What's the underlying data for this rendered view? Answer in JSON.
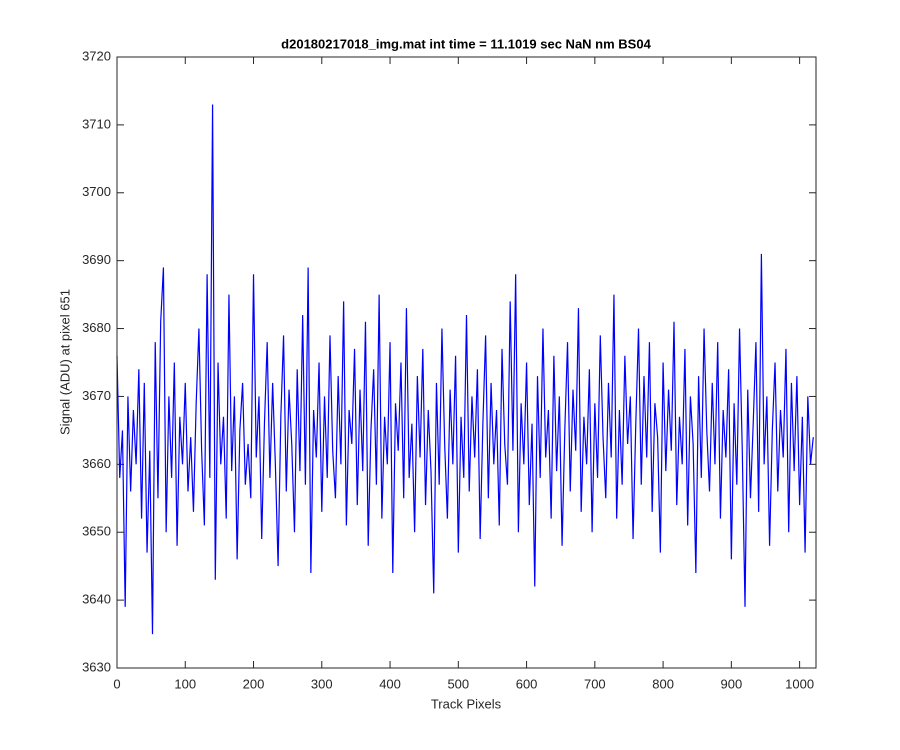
{
  "chart_data": {
    "type": "line",
    "title": "d20180217018_img.mat int time = 11.1019 sec  NaN nm BS04",
    "xlabel": "Track Pixels",
    "ylabel": "Signal (ADU) at pixel 651",
    "color": "#0000ff",
    "grid": false,
    "xlim": [
      0,
      1024
    ],
    "xticks": [
      0,
      100,
      200,
      300,
      400,
      500,
      600,
      700,
      800,
      900,
      1000
    ],
    "ylim": [
      3630,
      3720
    ],
    "yticks": [
      3630,
      3640,
      3650,
      3660,
      3670,
      3680,
      3690,
      3700,
      3710,
      3720
    ],
    "x": [
      0,
      4,
      8,
      12,
      16,
      20,
      24,
      28,
      32,
      36,
      40,
      44,
      48,
      52,
      56,
      60,
      64,
      68,
      72,
      76,
      80,
      84,
      88,
      92,
      96,
      100,
      104,
      108,
      112,
      116,
      120,
      124,
      128,
      132,
      136,
      140,
      144,
      148,
      152,
      156,
      160,
      164,
      168,
      172,
      176,
      180,
      184,
      188,
      192,
      196,
      200,
      204,
      208,
      212,
      216,
      220,
      224,
      228,
      232,
      236,
      240,
      244,
      248,
      252,
      256,
      260,
      264,
      268,
      272,
      276,
      280,
      284,
      288,
      292,
      296,
      300,
      304,
      308,
      312,
      316,
      320,
      324,
      328,
      332,
      336,
      340,
      344,
      348,
      352,
      356,
      360,
      364,
      368,
      372,
      376,
      380,
      384,
      388,
      392,
      396,
      400,
      404,
      408,
      412,
      416,
      420,
      424,
      428,
      432,
      436,
      440,
      444,
      448,
      452,
      456,
      460,
      464,
      468,
      472,
      476,
      480,
      484,
      488,
      492,
      496,
      500,
      504,
      508,
      512,
      516,
      520,
      524,
      528,
      532,
      536,
      540,
      544,
      548,
      552,
      556,
      560,
      564,
      568,
      572,
      576,
      580,
      584,
      588,
      592,
      596,
      600,
      604,
      608,
      612,
      616,
      620,
      624,
      628,
      632,
      636,
      640,
      644,
      648,
      652,
      656,
      660,
      664,
      668,
      672,
      676,
      680,
      684,
      688,
      692,
      696,
      700,
      704,
      708,
      712,
      716,
      720,
      724,
      728,
      732,
      736,
      740,
      744,
      748,
      752,
      756,
      760,
      764,
      768,
      772,
      776,
      780,
      784,
      788,
      792,
      796,
      800,
      804,
      808,
      812,
      816,
      820,
      824,
      828,
      832,
      836,
      840,
      844,
      848,
      852,
      856,
      860,
      864,
      868,
      872,
      876,
      880,
      884,
      888,
      892,
      896,
      900,
      904,
      908,
      912,
      916,
      920,
      924,
      928,
      932,
      936,
      940,
      944,
      948,
      952,
      956,
      960,
      964,
      968,
      972,
      976,
      980,
      984,
      988,
      992,
      996,
      1000,
      1004,
      1008,
      1012,
      1016,
      1020
    ],
    "values": [
      3676,
      3658,
      3665,
      3639,
      3670,
      3656,
      3668,
      3660,
      3674,
      3652,
      3672,
      3647,
      3662,
      3635,
      3678,
      3655,
      3681,
      3689,
      3650,
      3670,
      3658,
      3675,
      3648,
      3667,
      3660,
      3672,
      3656,
      3664,
      3653,
      3669,
      3680,
      3662,
      3651,
      3688,
      3658,
      3713,
      3643,
      3675,
      3660,
      3667,
      3652,
      3685,
      3659,
      3670,
      3646,
      3665,
      3672,
      3657,
      3663,
      3655,
      3688,
      3661,
      3670,
      3649,
      3666,
      3678,
      3658,
      3672,
      3660,
      3645,
      3667,
      3679,
      3656,
      3671,
      3663,
      3650,
      3674,
      3659,
      3682,
      3657,
      3689,
      3644,
      3668,
      3661,
      3675,
      3653,
      3670,
      3658,
      3679,
      3662,
      3655,
      3673,
      3660,
      3684,
      3651,
      3668,
      3663,
      3677,
      3654,
      3671,
      3659,
      3681,
      3648,
      3665,
      3674,
      3657,
      3685,
      3652,
      3667,
      3660,
      3678,
      3644,
      3669,
      3662,
      3675,
      3655,
      3683,
      3658,
      3666,
      3650,
      3673,
      3661,
      3677,
      3654,
      3668,
      3659,
      3641,
      3672,
      3657,
      3680,
      3663,
      3652,
      3671,
      3660,
      3676,
      3647,
      3667,
      3658,
      3682,
      3656,
      3670,
      3661,
      3674,
      3649,
      3666,
      3679,
      3655,
      3672,
      3660,
      3668,
      3651,
      3677,
      3663,
      3657,
      3684,
      3662,
      3688,
      3650,
      3669,
      3660,
      3675,
      3654,
      3666,
      3642,
      3673,
      3658,
      3680,
      3661,
      3668,
      3652,
      3676,
      3659,
      3670,
      3648,
      3665,
      3678,
      3656,
      3671,
      3662,
      3683,
      3653,
      3667,
      3660,
      3674,
      3650,
      3669,
      3658,
      3679,
      3664,
      3655,
      3672,
      3661,
      3685,
      3652,
      3668,
      3657,
      3676,
      3663,
      3670,
      3649,
      3666,
      3680,
      3657,
      3673,
      3661,
      3678,
      3653,
      3669,
      3664,
      3647,
      3675,
      3659,
      3671,
      3662,
      3681,
      3654,
      3667,
      3660,
      3677,
      3651,
      3670,
      3663,
      3644,
      3673,
      3658,
      3680,
      3665,
      3656,
      3672,
      3660,
      3678,
      3652,
      3668,
      3661,
      3674,
      3646,
      3669,
      3657,
      3680,
      3662,
      3639,
      3671,
      3655,
      3666,
      3678,
      3653,
      3691,
      3660,
      3670,
      3648,
      3665,
      3675,
      3656,
      3668,
      3661,
      3677,
      3650,
      3672,
      3659,
      3673,
      3654,
      3667,
      3647,
      3670,
      3660,
      3664
    ]
  }
}
